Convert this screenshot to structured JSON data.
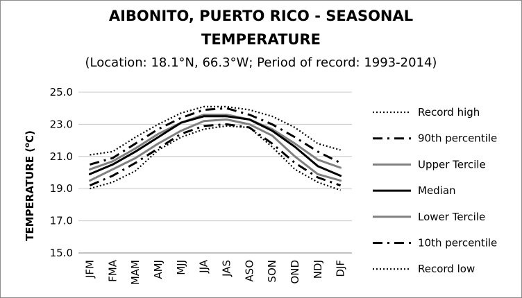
{
  "chart_data": {
    "type": "line",
    "title_line1": "AIBONITO, PUERTO RICO - SEASONAL",
    "title_line2": "TEMPERATURE",
    "subtitle": "(Location: 18.1°N, 66.3°W; Period of record: 1993-2014)",
    "xlabel": "",
    "ylabel_prefix": "TEMPERATURE (",
    "ylabel_sup": "o",
    "ylabel_suffix": "C)",
    "ylim": [
      15.0,
      25.0
    ],
    "yticks": [
      "15.0",
      "17.0",
      "19.0",
      "21.0",
      "23.0",
      "25.0"
    ],
    "grid": true,
    "legend_position": "right",
    "categories": [
      "JFM",
      "FMA",
      "MAM",
      "AMJ",
      "MJJ",
      "JJA",
      "JAS",
      "ASO",
      "SON",
      "OND",
      "NDJ",
      "DJF"
    ],
    "series": [
      {
        "name": "Record high",
        "color": "#000000",
        "dash": "dotted",
        "values": [
          21.1,
          21.3,
          22.2,
          23.0,
          23.7,
          24.1,
          24.1,
          23.9,
          23.5,
          22.8,
          21.8,
          21.4
        ]
      },
      {
        "name": "90th percentile",
        "color": "#000000",
        "dash": "dashdot",
        "values": [
          20.5,
          20.9,
          21.8,
          22.7,
          23.4,
          23.9,
          24.0,
          23.6,
          23.0,
          22.2,
          21.3,
          20.6
        ]
      },
      {
        "name": "Upper Tercile",
        "color": "#808080",
        "dash": "solid",
        "values": [
          20.2,
          20.7,
          21.5,
          22.4,
          23.1,
          23.6,
          23.6,
          23.3,
          22.7,
          21.8,
          20.8,
          20.3
        ]
      },
      {
        "name": "Median",
        "color": "#000000",
        "dash": "solid",
        "values": [
          19.9,
          20.5,
          21.3,
          22.2,
          23.1,
          23.5,
          23.5,
          23.3,
          22.6,
          21.6,
          20.4,
          19.8
        ]
      },
      {
        "name": "Lower Tercile",
        "color": "#808080",
        "dash": "solid",
        "values": [
          19.5,
          20.2,
          20.9,
          21.8,
          22.6,
          23.2,
          23.3,
          23.0,
          22.3,
          21.0,
          19.9,
          19.5
        ]
      },
      {
        "name": "10th percentile",
        "color": "#000000",
        "dash": "dashdot",
        "values": [
          19.2,
          19.8,
          20.6,
          21.5,
          22.4,
          22.9,
          23.0,
          22.8,
          21.8,
          20.6,
          19.7,
          19.2
        ]
      },
      {
        "name": "Record low",
        "color": "#000000",
        "dash": "dotted",
        "values": [
          19.0,
          19.4,
          20.1,
          21.4,
          22.2,
          22.7,
          22.9,
          22.8,
          21.6,
          20.2,
          19.4,
          18.9
        ]
      }
    ]
  }
}
